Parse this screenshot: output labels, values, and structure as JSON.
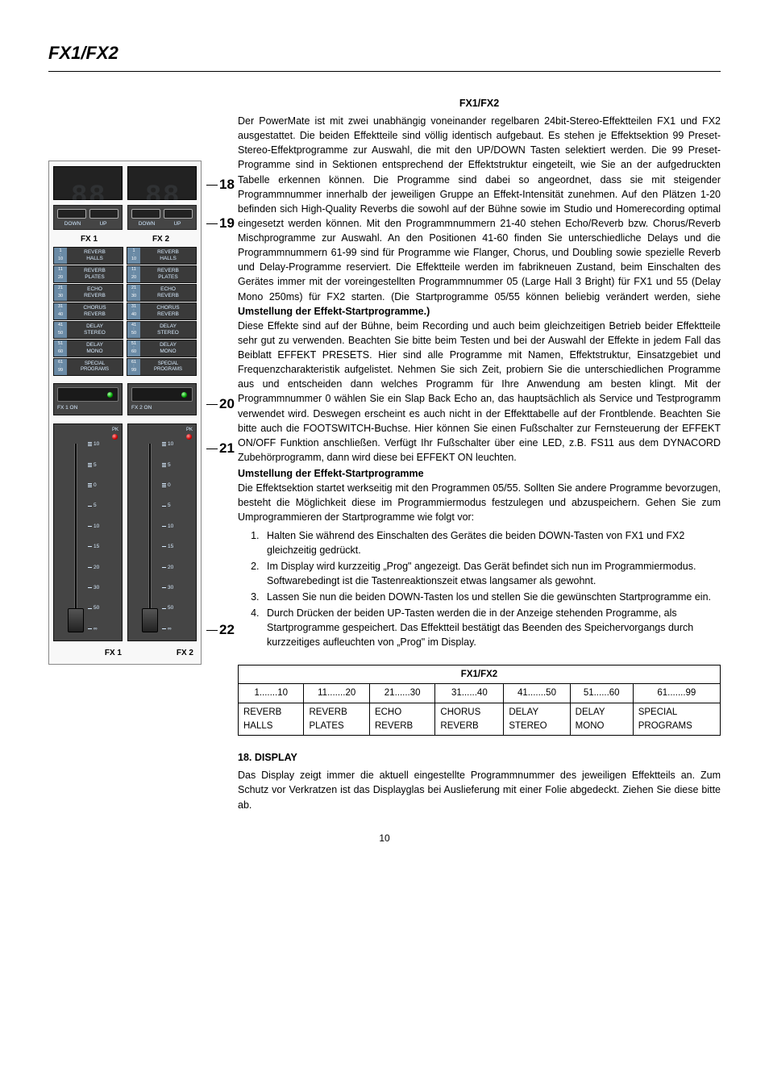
{
  "header": {
    "title": "FX1/FX2"
  },
  "pageNumber": "10",
  "rightCol": {
    "sectionTitle": "FX1/FX2",
    "para1": "Der PowerMate ist mit zwei unabhängig voneinander regelbaren 24bit-Stereo-Effektteilen FX1 und FX2 ausgestattet. Die beiden Effektteile sind völlig identisch aufgebaut. Es stehen je Effektsektion 99 Preset-Stereo-Effektprogramme zur Auswahl, die mit den UP/DOWN Tasten selektiert werden. Die 99 Preset-Programme sind in Sektionen entsprechend der Effektstruktur eingeteilt, wie Sie an der aufgedruckten Tabelle erkennen können. Die Programme sind dabei so angeordnet, dass sie mit steigender Programmnummer innerhalb der jeweiligen Gruppe an Effekt-Intensität zunehmen. Auf den Plätzen 1-20 befinden sich High-Quality Reverbs die sowohl auf der Bühne sowie im Studio und Homerecording optimal eingesetzt werden können. Mit den Programmnummern 21-40 stehen Echo/Reverb bzw. Chorus/Reverb Mischprogramme zur Auswahl. An den Positionen 41-60 finden Sie unterschiedliche Delays und die Programmnummern 61-99 sind für Programme wie Flanger, Chorus, und Doubling sowie spezielle Reverb und Delay-Programme reserviert. Die Effektteile werden im fabrikneuen Zustand, beim Einschalten des Gerätes immer mit der voreingestellten Programmnummer 05 (Large Hall 3 Bright) für FX1 und 55 (Delay Mono 250ms) für FX2 starten. (Die Startprogramme 05/55 können beliebig verändert werden, siehe ",
    "para1bold": "Umstellung der Effekt-Startprogramme.)",
    "para2": "Diese Effekte sind auf der Bühne, beim Recording und auch beim gleichzeitigen Betrieb beider Effektteile sehr gut zu verwenden. Beachten Sie bitte beim Testen und bei der Auswahl der Effekte in jedem Fall das Beiblatt EFFEKT PRESETS. Hier sind alle Programme mit Namen, Effektstruktur, Einsatzgebiet und Frequenzcharakteristik aufgelistet. Nehmen Sie sich Zeit, probiern Sie die unterschiedlichen Programme aus und entscheiden dann welches Programm für Ihre Anwendung am besten klingt. Mit der Programmnummer 0 wählen Sie ein Slap Back Echo an, das hauptsächlich als Service und Testprogramm verwendet wird. Deswegen erscheint es auch nicht in der Effekttabelle auf der Frontblende. Beachten Sie bitte auch die FOOTSWITCH-Buchse. Hier können Sie einen Fußschalter zur Fernsteuerung der EFFEKT ON/OFF Funktion anschließen. Verfügt Ihr Fußschalter über eine LED, z.B. FS11 aus dem DYNACORD Zubehörprogramm, dann wird diese bei EFFEKT ON leuchten.",
    "subTitle": "Umstellung der Effekt-Startprogramme",
    "para3": "Die Effektsektion startet werkseitig mit den Programmen 05/55. Sollten Sie andere Programme bevorzugen, besteht die Möglichkeit diese im Programmiermodus festzulegen und abzuspeichern. Gehen Sie zum Umprogrammieren der Startprogramme wie folgt vor:",
    "steps": [
      "Halten Sie während des Einschalten des Gerätes die beiden DOWN-Tasten von FX1 und FX2 gleichzeitig gedrückt.",
      "Im Display wird kurzzeitig „Prog\" angezeigt. Das Gerät befindet sich nun im Programmiermodus. Softwarebedingt ist die Tastenreaktionszeit etwas langsamer als gewohnt.",
      "Lassen Sie nun die beiden DOWN-Tasten los und stellen Sie die gewünschten Startprogramme ein.",
      "Durch Drücken der beiden UP-Tasten werden die in der Anzeige stehenden Programme, als Startprogramme gespeichert. Das Effektteil bestätigt das Beenden des Speichervorgangs durch kurzzeitiges aufleuchten von „Prog\"  im Display."
    ],
    "table": {
      "title": "FX1/FX2",
      "headers": [
        "1.......10",
        "11.......20",
        "21......30",
        "31......40",
        "41.......50",
        "51......60",
        "61.......99"
      ],
      "row1": [
        "REVERB",
        "REVERB",
        "ECHO",
        "CHORUS",
        "DELAY",
        "DELAY",
        "SPECIAL"
      ],
      "row2": [
        "HALLS",
        "PLATES",
        "REVERB",
        "REVERB",
        "STEREO",
        "MONO",
        "PROGRAMS"
      ]
    },
    "displayHeading": "18. DISPLAY",
    "displayPara": "Das Display zeigt immer die aktuell eingestellte Programmnummer des jeweiligen Effektteils an. Zum Schutz vor Verkratzen ist das Displayglas bei Auslieferung mit einer Folie abgedeckt. Ziehen Sie diese bitte ab."
  },
  "panel": {
    "callouts": {
      "c18": "18",
      "c19": "19",
      "c20": "20",
      "c21": "21",
      "c22": "22"
    },
    "btnLabels": {
      "down": "DOWN",
      "up": "UP"
    },
    "fxLabels": {
      "fx1": "FX 1",
      "fx2": "FX 2"
    },
    "presets": [
      {
        "range": "1:10",
        "l1": "REVERB",
        "l2": "HALLS"
      },
      {
        "range": "11:20",
        "l1": "REVERB",
        "l2": "PLATES"
      },
      {
        "range": "21:30",
        "l1": "ECHO",
        "l2": "REVERB"
      },
      {
        "range": "31:40",
        "l1": "CHORUS",
        "l2": "REVERB"
      },
      {
        "range": "41:50",
        "l1": "DELAY",
        "l2": "STEREO"
      },
      {
        "range": "51:60",
        "l1": "DELAY",
        "l2": "MONO"
      },
      {
        "range": "61:99",
        "l1": "SPECIAL",
        "l2": "PROGRAMS"
      }
    ],
    "fxOn": {
      "fx1": "FX 1 ON",
      "fx2": "FX 2 ON"
    },
    "pk": "PK",
    "faderScale": [
      "10",
      "5",
      "0",
      "5",
      "10",
      "15",
      "20",
      "30",
      "50",
      "∞"
    ],
    "bottom": {
      "fx1": "FX 1",
      "fx2": "FX 2"
    }
  }
}
